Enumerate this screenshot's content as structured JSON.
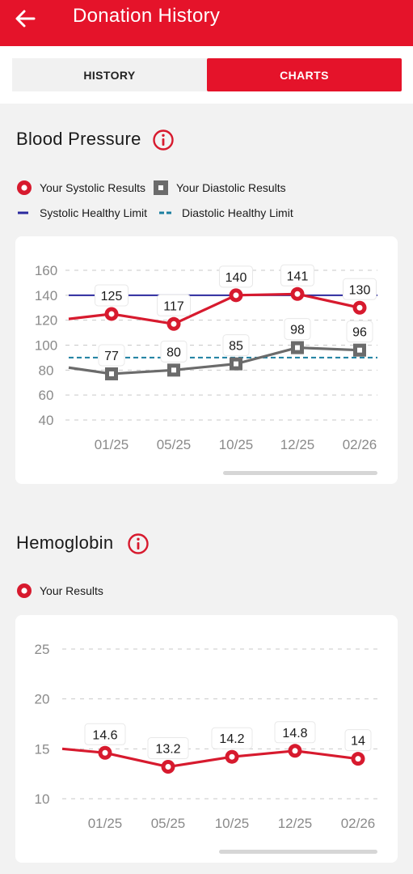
{
  "header": {
    "title": "Donation History"
  },
  "tabs": [
    {
      "label": "HISTORY",
      "active": false
    },
    {
      "label": "CHARTS",
      "active": true
    }
  ],
  "colors": {
    "brand": "#e5132a",
    "systolic": "#d71a2e",
    "diastolic": "#6b6b6b",
    "systolic_limit": "#2b2a9e",
    "diastolic_limit": "#1b7fa0"
  },
  "blood_pressure": {
    "title": "Blood Pressure",
    "legend": {
      "systolic": "Your Systolic Results",
      "diastolic": "Your Diastolic Results",
      "systolic_limit": "Systolic Healthy Limit",
      "diastolic_limit": "Diastolic Healthy Limit"
    }
  },
  "hemoglobin": {
    "title": "Hemoglobin",
    "legend": {
      "results": "Your Results"
    }
  },
  "chart_data": [
    {
      "type": "line",
      "title": "Blood Pressure",
      "categories": [
        "01/25",
        "05/25",
        "10/25",
        "12/25",
        "02/26"
      ],
      "yticks": [
        160,
        140,
        120,
        100,
        80,
        60,
        40
      ],
      "ylim": [
        40,
        160
      ],
      "grid": true,
      "series": [
        {
          "name": "Your Systolic Results",
          "values": [
            125,
            117,
            140,
            141,
            130
          ],
          "prev": 121
        },
        {
          "name": "Your Diastolic Results",
          "values": [
            77,
            80,
            85,
            98,
            96
          ],
          "prev": 82
        }
      ],
      "limits": [
        {
          "name": "Systolic Healthy Limit",
          "value": 140
        },
        {
          "name": "Diastolic Healthy Limit",
          "value": 90
        }
      ]
    },
    {
      "type": "line",
      "title": "Hemoglobin",
      "categories": [
        "01/25",
        "05/25",
        "10/25",
        "12/25",
        "02/26"
      ],
      "yticks": [
        25,
        20,
        15,
        10
      ],
      "ylim": [
        10,
        25
      ],
      "grid": true,
      "series": [
        {
          "name": "Your Results",
          "values": [
            14.6,
            13.2,
            14.2,
            14.8,
            14
          ],
          "prev": 15
        }
      ]
    }
  ]
}
